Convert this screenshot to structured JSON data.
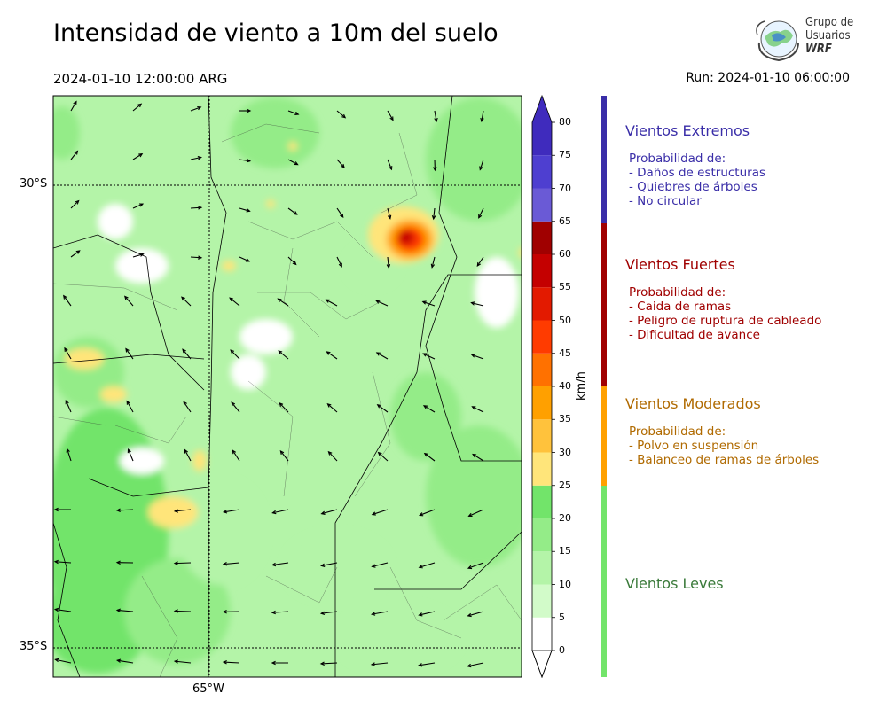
{
  "header": {
    "title": "Intensidad de viento a 10m del suelo",
    "valid_time": "2024-01-10 12:00:00 ARG",
    "run_time": "Run: 2024-01-10 06:00:00"
  },
  "logo": {
    "line1": "Grupo de",
    "line2": "Usuarios",
    "line3": "WRF"
  },
  "chart_data": {
    "type": "heatmap",
    "title": "Intensidad de viento a 10m del suelo",
    "variable": "Wind speed at 10 m",
    "units": "km/h",
    "lat_ticks": [
      {
        "label": "30°S",
        "value": -30
      },
      {
        "label": "35°S",
        "value": -35
      }
    ],
    "lon_ticks": [
      {
        "label": "65°W",
        "value": -65
      }
    ],
    "colorbar": {
      "levels": [
        0,
        5,
        10,
        15,
        20,
        25,
        30,
        35,
        40,
        45,
        50,
        55,
        60,
        65,
        70,
        75,
        80
      ],
      "colors": [
        "#ffffff",
        "#d2fbc9",
        "#b4f4a8",
        "#94ec88",
        "#72e46a",
        "#ffe57a",
        "#ffc23c",
        "#ffa000",
        "#ff7100",
        "#ff3b00",
        "#e31a00",
        "#c40000",
        "#a00000",
        "#6a5ad6",
        "#4e3fd0",
        "#3f2bbd"
      ],
      "extend": "both",
      "label": "km/h"
    },
    "wind_categories": [
      {
        "name": "Vientos Extremos",
        "range": [
          65,
          80
        ],
        "color": "#3a2ea8"
      },
      {
        "name": "Vientos Fuertes",
        "range": [
          40,
          65
        ],
        "color": "#a00000"
      },
      {
        "name": "Vientos Moderados",
        "range": [
          25,
          40
        ],
        "color": "#b06a00"
      },
      {
        "name": "Vientos Leves",
        "range": [
          0,
          25
        ],
        "color": "#3a7a3a"
      }
    ],
    "max_region": {
      "approx_max_kmh": 60,
      "location_hint": "north-east, near 30.8°S"
    }
  },
  "categories": [
    {
      "title": "Vientos Extremos",
      "color": "#3a2ea8",
      "lines": [
        "Probabilidad de:",
        "- Daños de estructuras",
        "- Quiebres de árboles",
        "- No circular"
      ]
    },
    {
      "title": "Vientos Fuertes",
      "color": "#a00000",
      "lines": [
        "Probabilidad de:",
        "- Caida de ramas",
        "- Peligro de ruptura de cableado",
        "- Dificultad de avance"
      ]
    },
    {
      "title": "Vientos Moderados",
      "color": "#b06a00",
      "lines": [
        "Probabilidad de:",
        "- Polvo en suspensión",
        "- Balanceo de ramas de árboles"
      ]
    },
    {
      "title": "Vientos Leves",
      "color": "#3a7a3a",
      "lines": []
    }
  ]
}
